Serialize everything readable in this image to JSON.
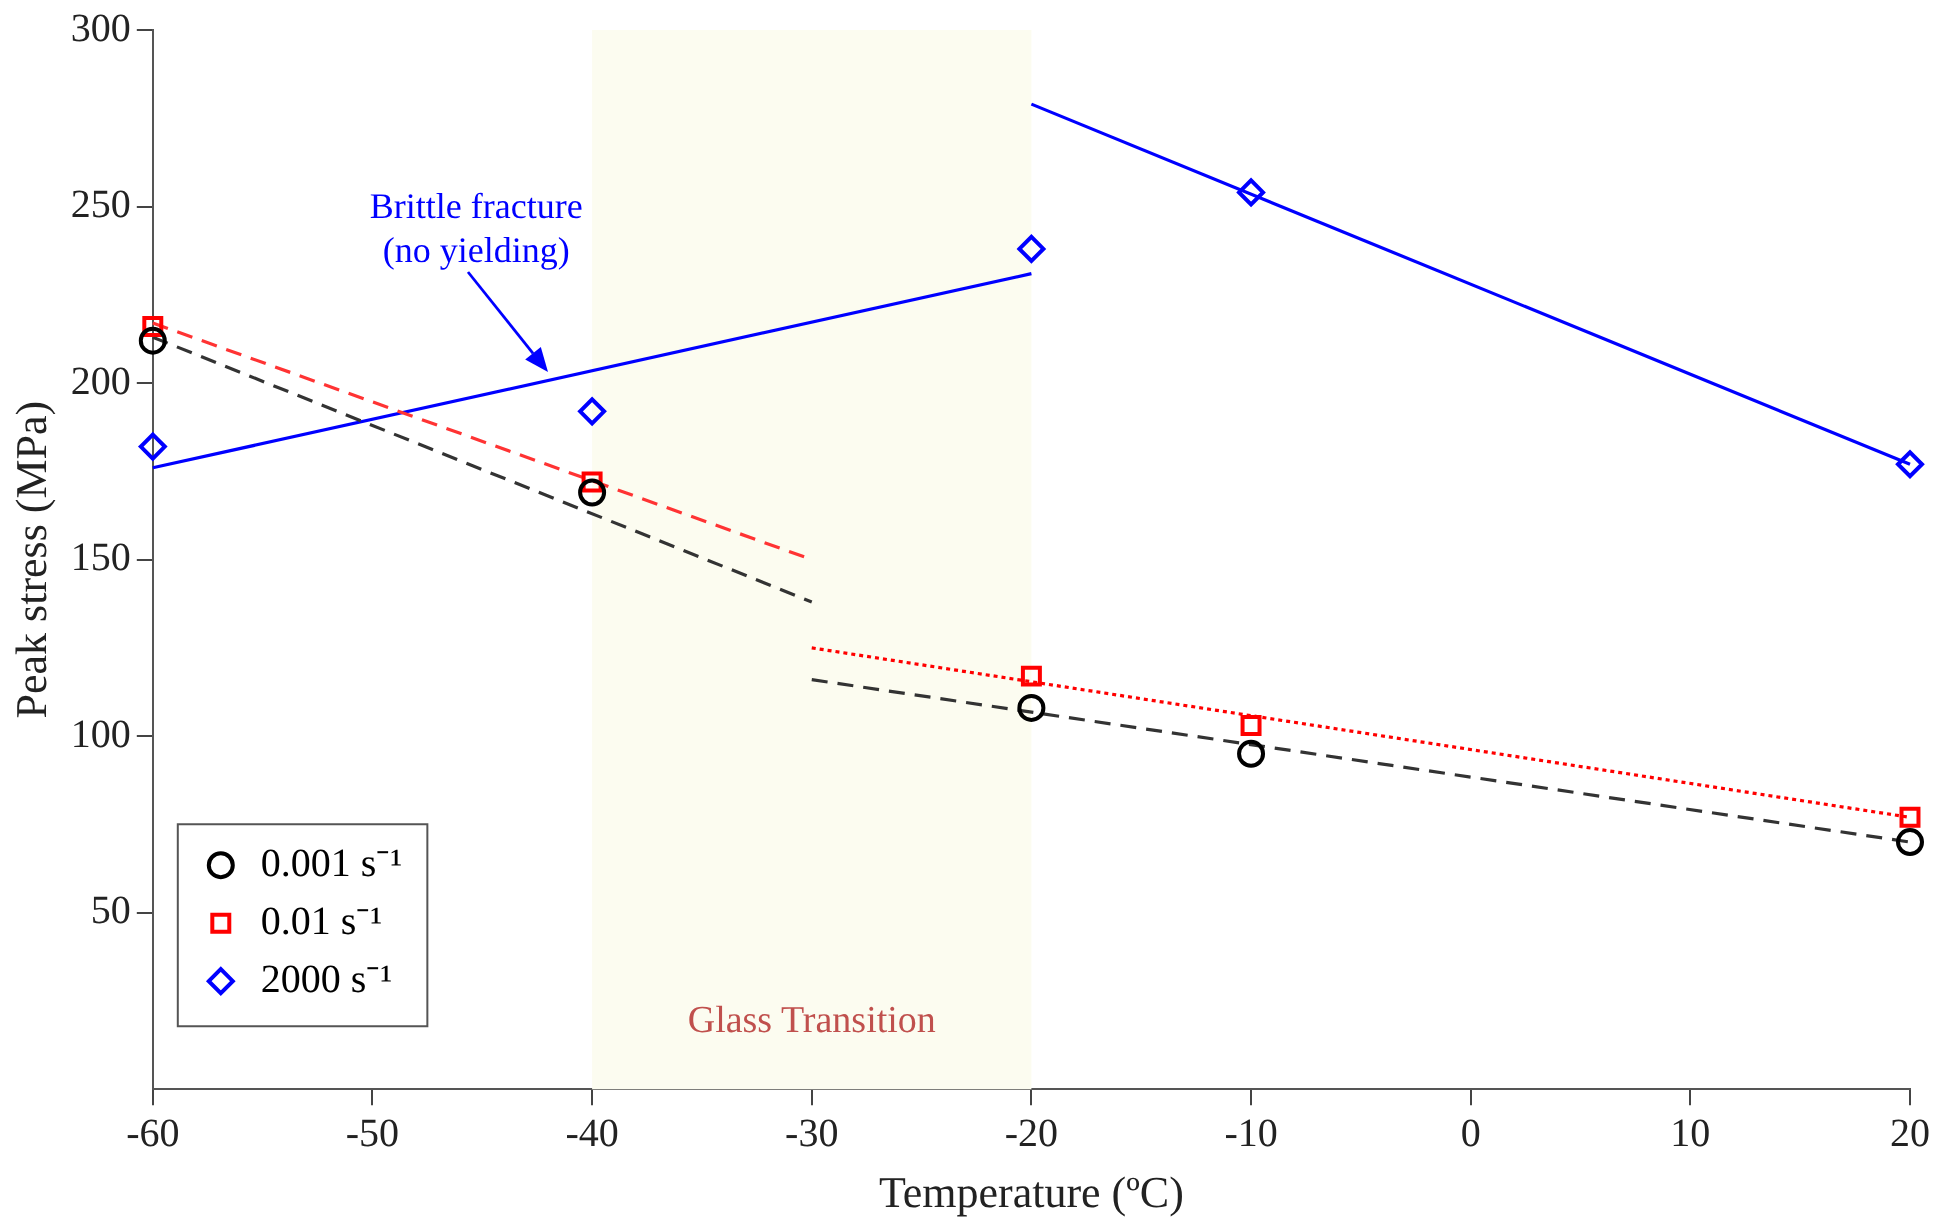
{
  "chart_data": {
    "type": "scatter",
    "xlabel": "Temperature (ºC)",
    "ylabel": "Peak stress (MPa)",
    "xlim": [
      -60,
      20
    ],
    "xticks": [
      -60,
      -50,
      -40,
      -30,
      -20,
      -10,
      0,
      10,
      20
    ],
    "ylim": [
      0,
      300
    ],
    "yticks": [
      50,
      100,
      150,
      200,
      250,
      300
    ],
    "grid": false,
    "legend": "bottom left",
    "series": [
      {
        "name": "0.001 s⁻¹",
        "type": "scatter",
        "marker": "circle",
        "color": "#000000",
        "x": [
          -60,
          -40,
          -20,
          -10,
          20
        ],
        "values": [
          212,
          169,
          108,
          95,
          70
        ]
      },
      {
        "name": "0.01 s⁻¹",
        "type": "scatter",
        "marker": "square",
        "color": "#ff0000",
        "x": [
          -60,
          -40,
          -20,
          -10,
          20
        ],
        "values": [
          216,
          172,
          117,
          103,
          77
        ]
      },
      {
        "name": "2000 s⁻¹",
        "type": "scatter",
        "marker": "diamond",
        "color": "#0000ff",
        "x": [
          -60,
          -40,
          -20,
          -10,
          20
        ],
        "values": [
          182,
          192,
          238,
          254,
          177
        ]
      },
      {
        "type": "line",
        "marker": "none",
        "line_style": "dashed",
        "color": "#333333",
        "x": [
          -60,
          -30
        ],
        "values": [
          213,
          138
        ]
      },
      {
        "type": "line",
        "marker": "none",
        "line_style": "dashed",
        "color": "#333333",
        "x": [
          -30,
          20
        ],
        "values": [
          116,
          70
        ]
      },
      {
        "type": "line",
        "marker": "none",
        "line_style": "dashed",
        "color": "#ff3333",
        "x": [
          -60,
          -30
        ],
        "values": [
          217,
          150
        ]
      },
      {
        "type": "line",
        "marker": "none",
        "line_style": "dotted",
        "color": "#ff0000",
        "x": [
          -30,
          20
        ],
        "values": [
          125,
          77
        ]
      },
      {
        "type": "line",
        "marker": "none",
        "line_style": "solid",
        "color": "#0000ff",
        "x": [
          -60,
          -20
        ],
        "values": [
          176,
          231
        ]
      },
      {
        "type": "line",
        "marker": "none",
        "line_style": "solid",
        "color": "#0000ff",
        "x": [
          -20,
          20
        ],
        "values": [
          279,
          177
        ]
      }
    ],
    "bands": [
      {
        "axis": "x",
        "from": -40,
        "to": -20,
        "label": "Glass Transition",
        "color": "#fcfcf0"
      }
    ],
    "annotations": [
      {
        "text": "Brittle fracture\n(no yielding)",
        "x": -42,
        "y": 203
      }
    ]
  }
}
